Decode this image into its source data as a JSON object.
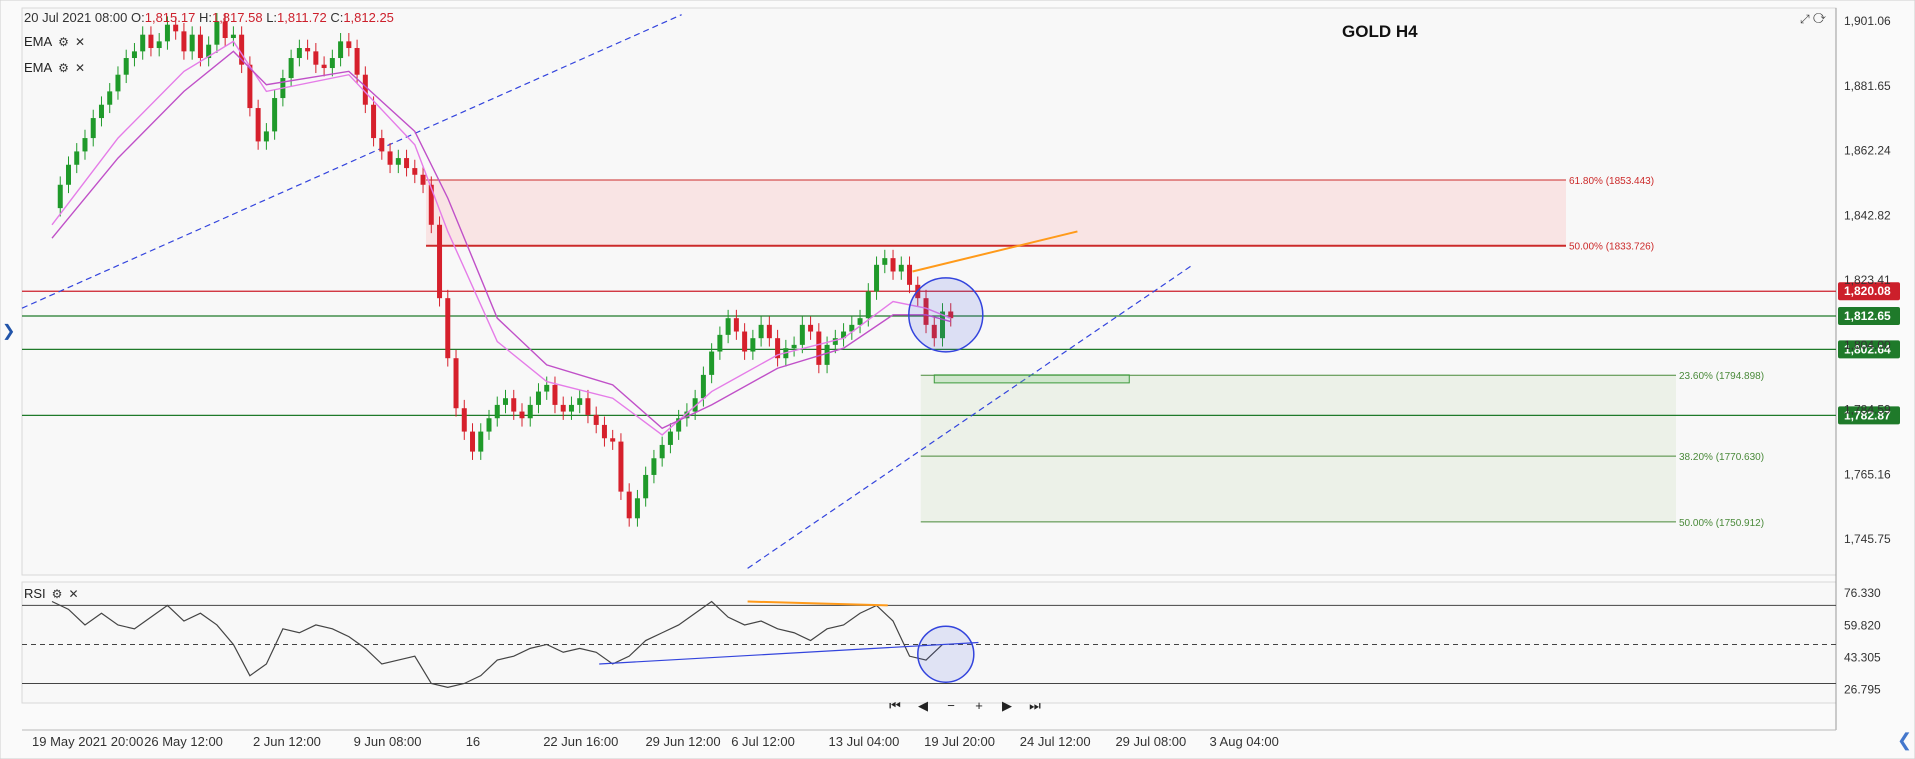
{
  "header": {
    "ohlc_date": "20 Jul 2021 08:00",
    "o_label": "O:",
    "o_value": "1,815.17",
    "h_label": "H:",
    "h_value": "1,817.58",
    "l_label": "L:",
    "l_value": "1,811.72",
    "c_label": "C:",
    "c_value": "1,812.25",
    "indicators": [
      "EMA",
      "EMA"
    ],
    "settings_icon": "gear-icon",
    "close_icon": "close-icon"
  },
  "title": "GOLD H4",
  "rsi_label": "RSI",
  "zoom_controls": [
    "⏮",
    "◀",
    "−",
    "+",
    "▶",
    "⏭"
  ],
  "colors": {
    "up": "#1f9a2a",
    "down": "#d6202c",
    "ema_fast": "#e57ce8",
    "ema_slow": "#c050c8",
    "fib_red": "#cc2a2a",
    "fib_green": "#4a8a3a",
    "trend_blue": "#3344dd",
    "orange": "#ff9a1a",
    "rsi_line": "#444444"
  },
  "chart_data": [
    {
      "type": "candlestick",
      "title": "GOLD H4",
      "ylim": [
        1735,
        1905
      ],
      "y_ticks": [
        "1,901.06",
        "1,881.65",
        "1,862.24",
        "1,842.82",
        "1,823.41",
        "1,804.00",
        "1,784.59",
        "1,765.16",
        "1,745.75"
      ],
      "x_ticks": [
        "19 May 2021 20:00",
        "26 May 12:00",
        "2 Jun 12:00",
        "9 Jun 08:00",
        "16",
        "22 Jun 16:00",
        "29 Jun 12:00",
        "6 Jul 12:00",
        "13 Jul 04:00",
        "19 Jul 20:00",
        "24 Jul 12:00",
        "29 Jul 08:00",
        "3 Aug 04:00"
      ],
      "price_path": [
        [
          0,
          1845
        ],
        [
          0.5,
          1852
        ],
        [
          1,
          1858
        ],
        [
          1.5,
          1862
        ],
        [
          2,
          1866
        ],
        [
          2.5,
          1872
        ],
        [
          3,
          1876
        ],
        [
          3.5,
          1880
        ],
        [
          4,
          1885
        ],
        [
          4.5,
          1890
        ],
        [
          5,
          1892
        ],
        [
          5.5,
          1897
        ],
        [
          6,
          1893
        ],
        [
          6.5,
          1895
        ],
        [
          7,
          1900
        ],
        [
          7.5,
          1898
        ],
        [
          8,
          1892
        ],
        [
          8.5,
          1897
        ],
        [
          9,
          1890
        ],
        [
          9.5,
          1894
        ],
        [
          10,
          1901
        ],
        [
          10.5,
          1896
        ],
        [
          11,
          1897
        ],
        [
          11.5,
          1888
        ],
        [
          12,
          1875
        ],
        [
          12.5,
          1865
        ],
        [
          13,
          1868
        ],
        [
          13.5,
          1878
        ],
        [
          14,
          1884
        ],
        [
          14.5,
          1890
        ],
        [
          15,
          1893
        ],
        [
          15.5,
          1892
        ],
        [
          16,
          1888
        ],
        [
          16.5,
          1887
        ],
        [
          17,
          1890
        ],
        [
          17.5,
          1895
        ],
        [
          18,
          1893
        ],
        [
          18.5,
          1885
        ],
        [
          19,
          1876
        ],
        [
          19.5,
          1866
        ],
        [
          20,
          1862
        ],
        [
          20.5,
          1858
        ],
        [
          21,
          1860
        ],
        [
          21.5,
          1857
        ],
        [
          22,
          1855
        ],
        [
          22.5,
          1852
        ],
        [
          23,
          1840
        ],
        [
          23.5,
          1818
        ],
        [
          24,
          1800
        ],
        [
          24.5,
          1785
        ],
        [
          25,
          1778
        ],
        [
          25.5,
          1772
        ],
        [
          26,
          1778
        ],
        [
          26.5,
          1782
        ],
        [
          27,
          1786
        ],
        [
          27.5,
          1788
        ],
        [
          28,
          1784
        ],
        [
          28.5,
          1782
        ],
        [
          29,
          1786
        ],
        [
          29.5,
          1790
        ],
        [
          30,
          1792
        ],
        [
          30.5,
          1786
        ],
        [
          31,
          1784
        ],
        [
          31.5,
          1786
        ],
        [
          32,
          1788
        ],
        [
          32.5,
          1783
        ],
        [
          33,
          1780
        ],
        [
          33.5,
          1776
        ],
        [
          34,
          1775
        ],
        [
          34.5,
          1760
        ],
        [
          35,
          1752
        ],
        [
          35.5,
          1758
        ],
        [
          36,
          1765
        ],
        [
          36.5,
          1770
        ],
        [
          37,
          1774
        ],
        [
          37.5,
          1778
        ],
        [
          38,
          1782
        ],
        [
          38.5,
          1784
        ],
        [
          39,
          1788
        ],
        [
          39.5,
          1795
        ],
        [
          40,
          1802
        ],
        [
          40.5,
          1807
        ],
        [
          41,
          1812
        ],
        [
          41.5,
          1808
        ],
        [
          42,
          1802
        ],
        [
          42.5,
          1806
        ],
        [
          43,
          1810
        ],
        [
          43.5,
          1806
        ],
        [
          44,
          1800
        ],
        [
          44.5,
          1803
        ],
        [
          45,
          1804
        ],
        [
          45.5,
          1810
        ],
        [
          46,
          1808
        ],
        [
          46.5,
          1798
        ],
        [
          47,
          1804
        ],
        [
          47.5,
          1806
        ],
        [
          48,
          1808
        ],
        [
          48.5,
          1810
        ],
        [
          49,
          1812
        ],
        [
          49.5,
          1820
        ],
        [
          50,
          1828
        ],
        [
          50.5,
          1830
        ],
        [
          51,
          1826
        ],
        [
          51.5,
          1828
        ],
        [
          52,
          1822
        ],
        [
          52.5,
          1818
        ],
        [
          53,
          1810
        ],
        [
          53.5,
          1806
        ],
        [
          54,
          1814
        ],
        [
          54.5,
          1812
        ]
      ],
      "ema_fast": [
        [
          0,
          1840
        ],
        [
          4,
          1866
        ],
        [
          8,
          1886
        ],
        [
          11,
          1895
        ],
        [
          13,
          1880
        ],
        [
          18,
          1885
        ],
        [
          22,
          1864
        ],
        [
          24,
          1838
        ],
        [
          27,
          1805
        ],
        [
          30,
          1793
        ],
        [
          34,
          1788
        ],
        [
          37,
          1777
        ],
        [
          40,
          1790
        ],
        [
          44,
          1801
        ],
        [
          48,
          1806
        ],
        [
          51,
          1817
        ],
        [
          53,
          1815
        ],
        [
          54.5,
          1812
        ]
      ],
      "ema_slow": [
        [
          0,
          1836
        ],
        [
          4,
          1860
        ],
        [
          8,
          1880
        ],
        [
          11,
          1892
        ],
        [
          13,
          1882
        ],
        [
          18,
          1886
        ],
        [
          22,
          1868
        ],
        [
          24,
          1848
        ],
        [
          27,
          1812
        ],
        [
          30,
          1798
        ],
        [
          34,
          1792
        ],
        [
          37,
          1779
        ],
        [
          40,
          1786
        ],
        [
          44,
          1797
        ],
        [
          48,
          1803
        ],
        [
          51,
          1813
        ],
        [
          53,
          1813
        ],
        [
          54.5,
          1811
        ]
      ],
      "horizontal_levels": [
        {
          "label": "61.80% (1853.443)",
          "value": 1853.443,
          "color": "#cc2a2a"
        },
        {
          "label": "50.00% (1833.726)",
          "value": 1833.726,
          "color": "#cc2a2a"
        },
        {
          "label": "23.60% (1794.898)",
          "value": 1794.898,
          "color": "#4a8a3a"
        },
        {
          "label": "38.20% (1770.630)",
          "value": 1770.63,
          "color": "#4a8a3a"
        },
        {
          "label": "50.00% (1750.912)",
          "value": 1750.912,
          "color": "#4a8a3a"
        }
      ],
      "price_tags": [
        {
          "value": 1820.08,
          "label": "1,820.08",
          "color": "#cc1f2b"
        },
        {
          "value": 1812.65,
          "label": "1,812.65",
          "color": "#1f7a2a"
        },
        {
          "value": 1802.64,
          "label": "1,802.64",
          "color": "#1f7a2a"
        },
        {
          "value": 1782.87,
          "label": "1,782.87",
          "color": "#1f7a2a"
        }
      ]
    },
    {
      "type": "line",
      "name": "RSI",
      "ylim": [
        20,
        82
      ],
      "y_ticks": [
        "76.330",
        "59.820",
        "43.305",
        "26.795"
      ],
      "levels": [
        70,
        50,
        30
      ],
      "values": [
        [
          0,
          72
        ],
        [
          1,
          68
        ],
        [
          2,
          60
        ],
        [
          3,
          66
        ],
        [
          4,
          60
        ],
        [
          5,
          58
        ],
        [
          6,
          64
        ],
        [
          7,
          70
        ],
        [
          8,
          62
        ],
        [
          9,
          66
        ],
        [
          10,
          60
        ],
        [
          11,
          50
        ],
        [
          12,
          34
        ],
        [
          13,
          40
        ],
        [
          14,
          58
        ],
        [
          15,
          56
        ],
        [
          16,
          60
        ],
        [
          17,
          58
        ],
        [
          18,
          54
        ],
        [
          19,
          48
        ],
        [
          20,
          40
        ],
        [
          21,
          42
        ],
        [
          22,
          44
        ],
        [
          23,
          30
        ],
        [
          24,
          28
        ],
        [
          25,
          30
        ],
        [
          26,
          34
        ],
        [
          27,
          42
        ],
        [
          28,
          44
        ],
        [
          29,
          48
        ],
        [
          30,
          50
        ],
        [
          31,
          46
        ],
        [
          32,
          48
        ],
        [
          33,
          46
        ],
        [
          34,
          40
        ],
        [
          35,
          44
        ],
        [
          36,
          52
        ],
        [
          37,
          56
        ],
        [
          38,
          60
        ],
        [
          39,
          66
        ],
        [
          40,
          72
        ],
        [
          41,
          64
        ],
        [
          42,
          60
        ],
        [
          43,
          62
        ],
        [
          44,
          58
        ],
        [
          45,
          56
        ],
        [
          46,
          52
        ],
        [
          47,
          58
        ],
        [
          48,
          60
        ],
        [
          49,
          66
        ],
        [
          50,
          70
        ],
        [
          51,
          62
        ],
        [
          52,
          44
        ],
        [
          53,
          42
        ],
        [
          54,
          50
        ]
      ]
    }
  ]
}
